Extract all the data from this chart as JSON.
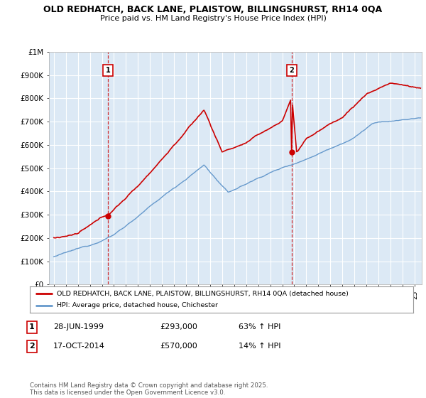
{
  "title1": "OLD REDHATCH, BACK LANE, PLAISTOW, BILLINGSHURST, RH14 0QA",
  "title2": "Price paid vs. HM Land Registry's House Price Index (HPI)",
  "ylabel_ticks": [
    "£0",
    "£100K",
    "£200K",
    "£300K",
    "£400K",
    "£500K",
    "£600K",
    "£700K",
    "£800K",
    "£900K",
    "£1M"
  ],
  "ytick_values": [
    0,
    100000,
    200000,
    300000,
    400000,
    500000,
    600000,
    700000,
    800000,
    900000,
    1000000
  ],
  "xlim_start": 1994.6,
  "xlim_end": 2025.6,
  "ylim": [
    0,
    1000000
  ],
  "red_line_color": "#cc0000",
  "blue_line_color": "#6699cc",
  "vline_color": "#cc0000",
  "chart_bg_color": "#dce9f5",
  "marker1_date": 1999.49,
  "marker2_date": 2014.79,
  "legend_label1": "OLD REDHATCH, BACK LANE, PLAISTOW, BILLINGSHURST, RH14 0QA (detached house)",
  "legend_label2": "HPI: Average price, detached house, Chichester",
  "annotation1_label": "1",
  "annotation2_label": "2",
  "table_row1": [
    "1",
    "28-JUN-1999",
    "£293,000",
    "63% ↑ HPI"
  ],
  "table_row2": [
    "2",
    "17-OCT-2014",
    "£570,000",
    "14% ↑ HPI"
  ],
  "footer": "Contains HM Land Registry data © Crown copyright and database right 2025.\nThis data is licensed under the Open Government Licence v3.0.",
  "background_color": "#ffffff",
  "grid_color": "#ffffff"
}
